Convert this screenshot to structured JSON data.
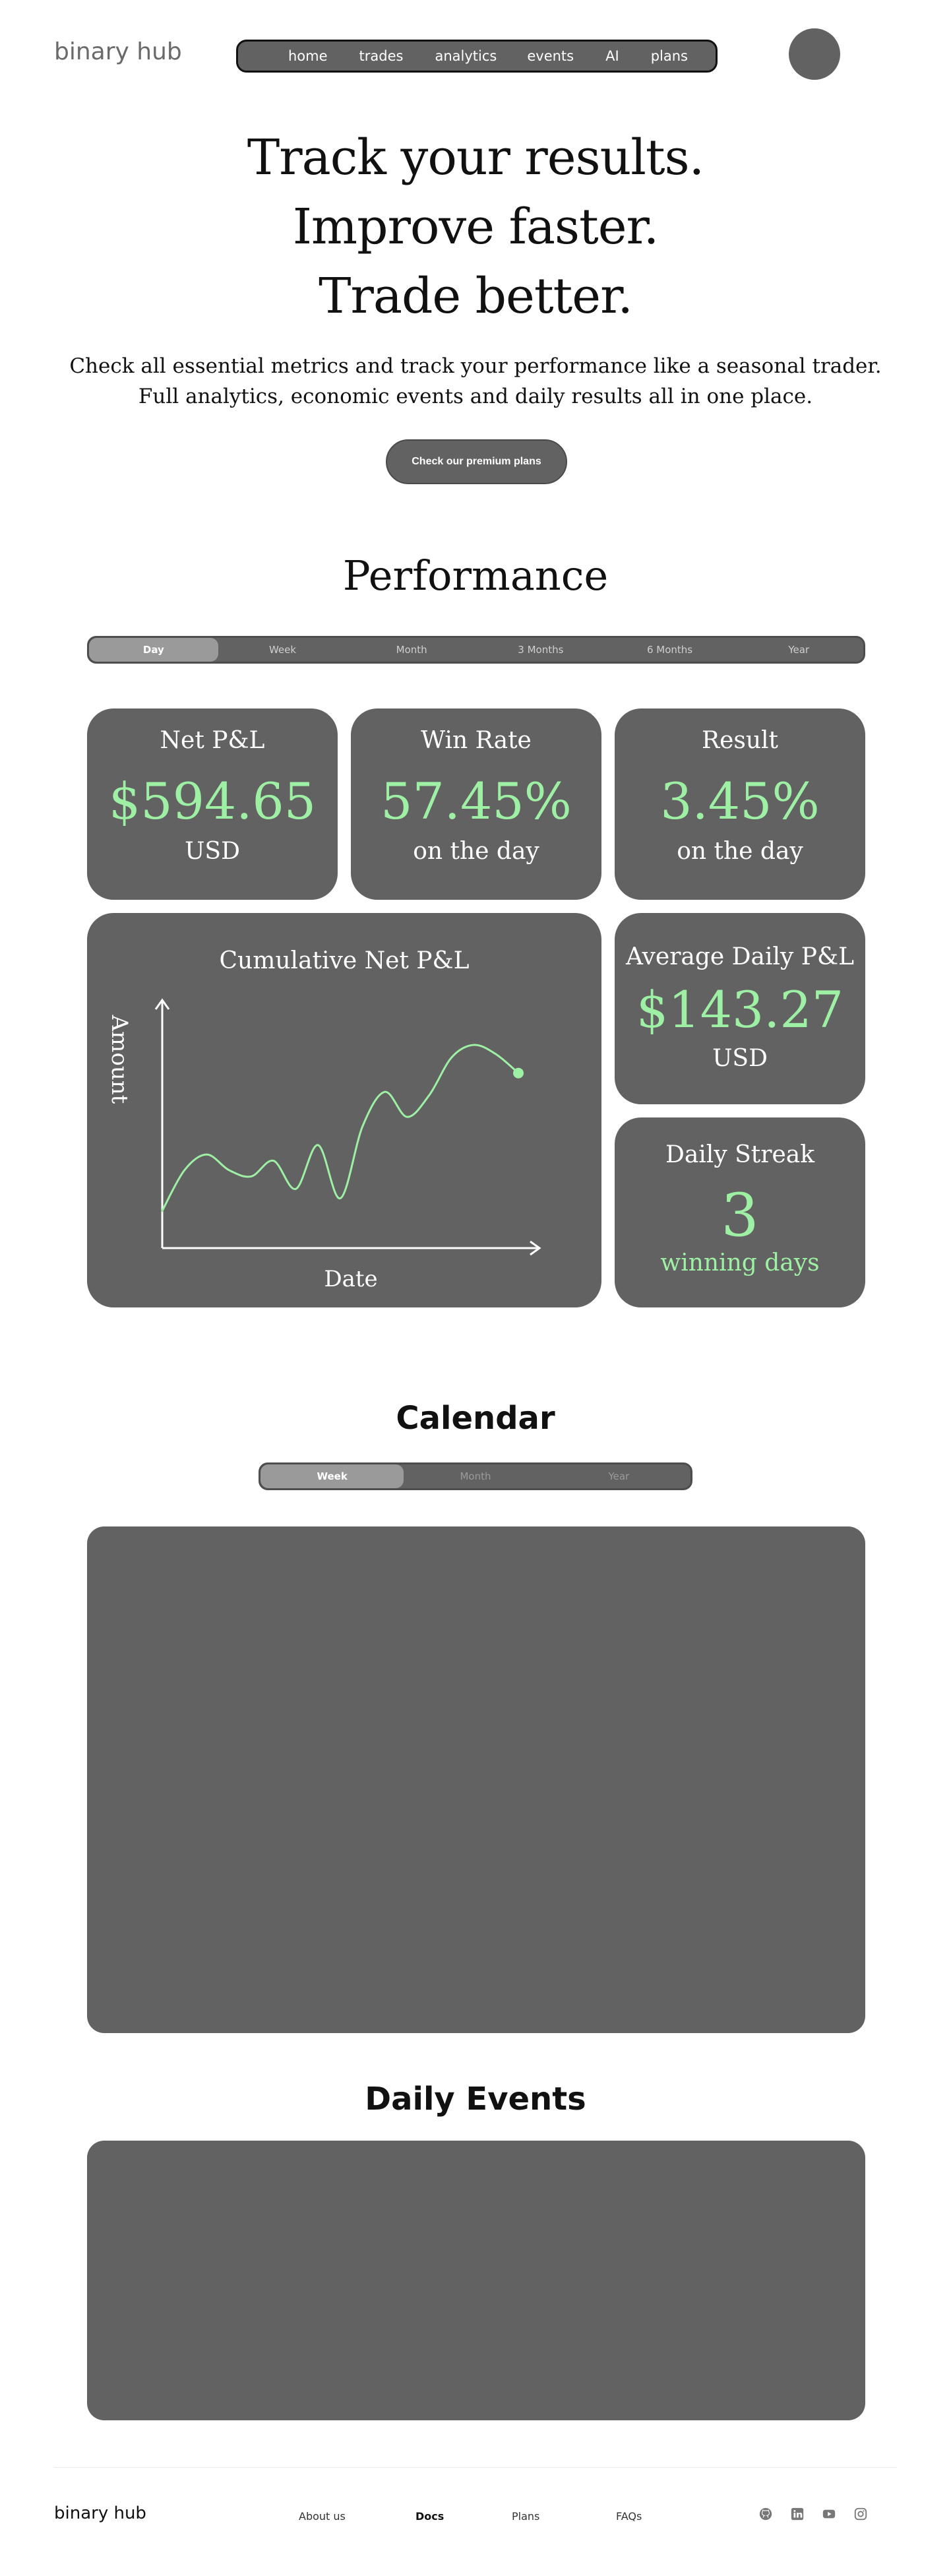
{
  "header": {
    "logo": "binary hub",
    "nav": [
      "home",
      "trades",
      "analytics",
      "events",
      "AI",
      "plans"
    ]
  },
  "hero": {
    "title_lines": [
      "Track your results.",
      "Improve faster.",
      "Trade better."
    ],
    "subtitle_lines": [
      "Check all essential metrics and track your performance like a seasonal trader.",
      "Full analytics, economic events and daily results all in one place."
    ],
    "cta": "Check our premium plans"
  },
  "performance": {
    "title": "Performance",
    "periods": [
      "Day",
      "Week",
      "Month",
      "3 Months",
      "6 Months",
      "Year"
    ],
    "active_period": "Day",
    "cards": {
      "net_pnl": {
        "title": "Net P&L",
        "value": "$594.65",
        "sub": "USD"
      },
      "win_rate": {
        "title": "Win Rate",
        "value": "57.45%",
        "sub": "on the day"
      },
      "result": {
        "title": "Result",
        "value": "3.45%",
        "sub": "on the day"
      },
      "avg_daily": {
        "title": "Average Daily P&L",
        "value": "$143.27",
        "sub": "USD"
      },
      "streak": {
        "title": "Daily Streak",
        "value": "3",
        "sub": "winning days"
      }
    }
  },
  "chart_data": {
    "type": "line",
    "title": "Cumulative Net P&L",
    "xlabel": "Date",
    "ylabel": "Amount",
    "x": [
      0,
      1,
      2,
      3,
      4,
      5,
      6,
      7,
      8,
      9,
      10,
      11,
      12,
      13,
      14,
      15,
      16
    ],
    "y": [
      12,
      38,
      48,
      38,
      34,
      44,
      26,
      54,
      20,
      66,
      88,
      72,
      86,
      110,
      118,
      112,
      100
    ],
    "series_color": "#9ef0a4",
    "grid": false
  },
  "calendar": {
    "title": "Calendar",
    "periods": [
      "Week",
      "Month",
      "Year"
    ],
    "active_period": "Week"
  },
  "events": {
    "title": "Daily Events"
  },
  "footer": {
    "logo": "binary hub",
    "links": [
      "About us",
      "Docs",
      "Plans",
      "FAQs"
    ],
    "social_icons": [
      "github-icon",
      "linkedin-icon",
      "youtube-icon",
      "instagram-icon"
    ]
  },
  "colors": {
    "card_bg": "#626262",
    "accent_green": "#9ef0a4",
    "active_segment": "#9a9a9a"
  }
}
